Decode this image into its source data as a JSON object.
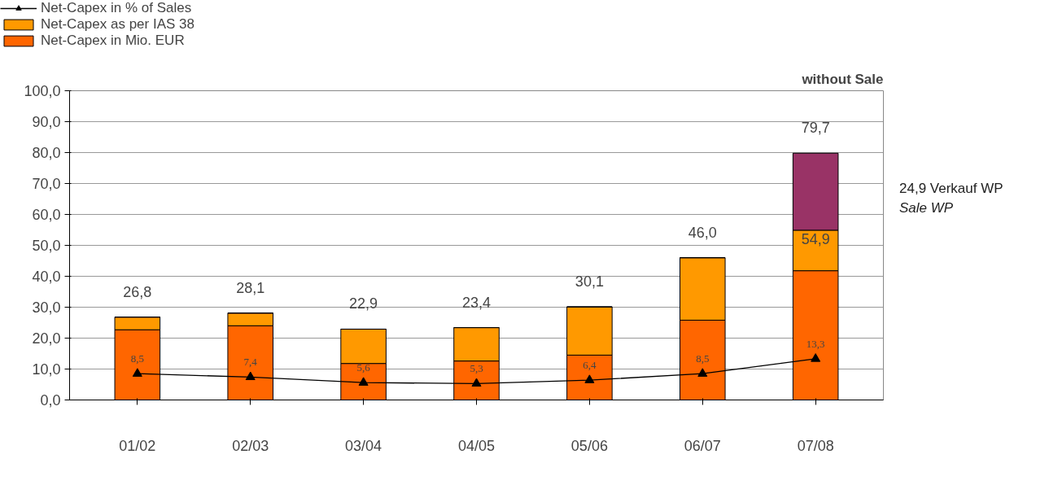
{
  "chart_data": {
    "type": "bar",
    "title": "without Sale",
    "stacked": true,
    "categories": [
      "01/02",
      "02/03",
      "03/04",
      "04/05",
      "05/06",
      "06/07",
      "07/08"
    ],
    "series": [
      {
        "name": "Net-Capex in Mio. EUR",
        "color": "#ff6600",
        "values": [
          22.7,
          24.0,
          11.8,
          12.6,
          14.5,
          25.8,
          41.8
        ]
      },
      {
        "name": "Net-Capex as per IAS 38",
        "color": "#ff9900",
        "values": [
          4.1,
          4.1,
          11.1,
          10.8,
          15.6,
          20.2,
          13.1
        ]
      },
      {
        "color": "#993366",
        "values": [
          null,
          null,
          null,
          null,
          null,
          null,
          24.9
        ]
      },
      {
        "name": "Net-Capex in % of Sales",
        "type": "line",
        "color": "#000000",
        "marker": "triangle",
        "values": [
          8.5,
          7.4,
          5.6,
          5.3,
          6.4,
          8.5,
          13.3
        ],
        "value_labels": [
          "8,5",
          "7,4",
          "5,6",
          "5,3",
          "6,4",
          "8,5",
          "13,3"
        ]
      }
    ],
    "totals": [
      "26,8",
      "28,1",
      "22,9",
      "23,4",
      "30,1",
      "46,0",
      "79,7"
    ],
    "annotations": [
      {
        "text": "54,9",
        "x": "07/08",
        "y": 54.9
      },
      "24,9 Verkauf WP",
      "Sale WP"
    ],
    "ylim": [
      0,
      100
    ],
    "yticks": [
      {
        "value": 0,
        "label": "0,0"
      },
      {
        "value": 10,
        "label": "10,0"
      },
      {
        "value": 20,
        "label": "20,0"
      },
      {
        "value": 30,
        "label": "30,0"
      },
      {
        "value": 40,
        "label": "40,0"
      },
      {
        "value": 50,
        "label": "50,0"
      },
      {
        "value": 60,
        "label": "60,0"
      },
      {
        "value": 70,
        "label": "70,0"
      },
      {
        "value": 80,
        "label": "80,0"
      },
      {
        "value": 90,
        "label": "90,0"
      },
      {
        "value": 100,
        "label": "100,0"
      }
    ],
    "grid": "y",
    "legend": "top left"
  }
}
